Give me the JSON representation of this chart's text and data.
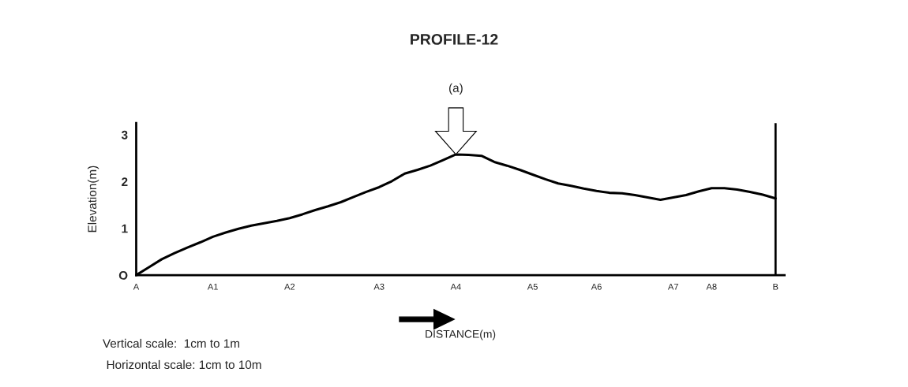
{
  "chart_data": {
    "type": "line",
    "title": "PROFILE-12",
    "xlabel": "DISTANCE(m)",
    "ylabel": "Elevation(m)",
    "categories": [
      "A",
      null,
      null,
      null,
      null,
      null,
      "A1",
      null,
      null,
      null,
      null,
      null,
      "A2",
      null,
      null,
      null,
      null,
      null,
      null,
      "A3",
      null,
      null,
      null,
      null,
      null,
      "A4",
      null,
      null,
      null,
      null,
      null,
      "A5",
      null,
      null,
      null,
      null,
      "A6",
      null,
      null,
      null,
      null,
      null,
      "A7",
      null,
      null,
      "A8",
      null,
      null,
      null,
      null,
      "B"
    ],
    "series": [
      {
        "color": "#000000",
        "values": [
          0,
          0.17,
          0.34,
          0.47,
          0.59,
          0.7,
          0.82,
          0.91,
          0.99,
          1.06,
          1.11,
          1.16,
          1.22,
          1.3,
          1.39,
          1.47,
          1.56,
          1.67,
          1.78,
          1.88,
          2.01,
          2.17,
          2.25,
          2.34,
          2.46,
          2.58,
          2.57,
          2.55,
          2.42,
          2.34,
          2.25,
          2.15,
          2.05,
          1.96,
          1.91,
          1.85,
          1.8,
          1.76,
          1.75,
          1.71,
          1.66,
          1.61,
          1.66,
          1.71,
          1.79,
          1.86,
          1.86,
          1.83,
          1.78,
          1.72,
          1.64
        ]
      }
    ],
    "ylim": [
      0,
      3.25
    ],
    "yticks": [
      {
        "value": 0,
        "label": "O"
      },
      1,
      2,
      3
    ],
    "ref_lines": [
      {
        "axis": "x",
        "value": "B",
        "color": "#000000"
      }
    ],
    "annotations": [
      "(a)",
      "Vertical scale:  1cm to 1m",
      "Horizontal scale: 1cm to 10m"
    ],
    "grid": false,
    "legend": false,
    "marker": "none",
    "line_style": "solid"
  }
}
